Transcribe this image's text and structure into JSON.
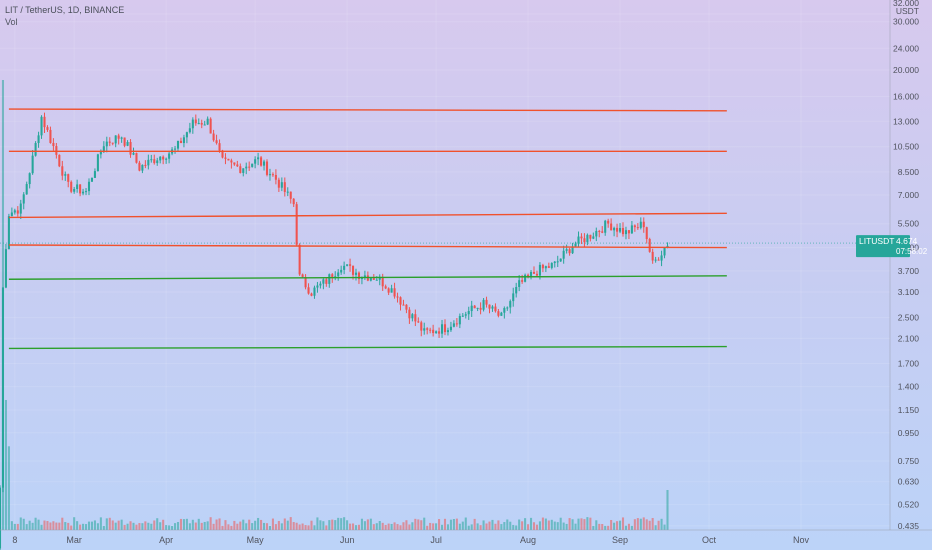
{
  "header": {
    "symbol_line": "LIT / TetherUS, 1D, BINANCE",
    "volume_label": "Vol"
  },
  "price_tag": {
    "symbol": "LITUSDT",
    "price": "4.674",
    "countdown": "07:58:02",
    "color": "#26a69a"
  },
  "colors": {
    "up": "#26a69a",
    "down": "#ef5350",
    "resistance": "#f0512d",
    "support": "#2ca02c",
    "axis_text": "#50535e"
  },
  "chart_data": {
    "type": "candlestick",
    "title": "LIT / TetherUS, 1D, BINANCE",
    "y_axis": {
      "scale": "log",
      "unit": "USDT",
      "tick_labels": [
        "32.000",
        "30.000",
        "24.000",
        "20.000",
        "16.000",
        "13.000",
        "10.500",
        "8.500",
        "7.000",
        "5.500",
        "4.500",
        "3.700",
        "3.100",
        "2.500",
        "2.100",
        "1.700",
        "1.400",
        "1.150",
        "0.950",
        "0.750",
        "0.630",
        "0.520",
        "0.435"
      ],
      "ticks": [
        32.0,
        30.0,
        24.0,
        20.0,
        16.0,
        13.0,
        10.5,
        8.5,
        7.0,
        5.5,
        4.5,
        3.7,
        3.1,
        2.5,
        2.1,
        1.7,
        1.4,
        1.15,
        0.95,
        0.75,
        0.63,
        0.52,
        0.435
      ],
      "range": [
        0.42,
        36.0
      ]
    },
    "x_axis": {
      "labels": [
        "8",
        "Mar",
        "Apr",
        "May",
        "Jun",
        "Jul",
        "Aug",
        "Sep",
        "Oct",
        "Nov"
      ],
      "label_days": [
        0,
        20,
        51,
        81,
        112,
        142,
        173,
        204,
        234,
        265
      ],
      "range_days": [
        -5,
        295
      ]
    },
    "levels": [
      {
        "kind": "resistance",
        "price_start": 14.4,
        "price_end": 14.2,
        "day_start": -2,
        "day_end": 240
      },
      {
        "kind": "resistance",
        "price_start": 10.1,
        "price_end": 10.1,
        "day_start": -2,
        "day_end": 240
      },
      {
        "kind": "resistance",
        "price_start": 5.8,
        "price_end": 6.0,
        "day_start": -2,
        "day_end": 240
      },
      {
        "kind": "resistance",
        "price_start": 4.6,
        "price_end": 4.5,
        "day_start": -2,
        "day_end": 240
      },
      {
        "kind": "support",
        "price_start": 3.45,
        "price_end": 3.55,
        "day_start": -2,
        "day_end": 240
      },
      {
        "kind": "support",
        "price_start": 1.93,
        "price_end": 1.96,
        "day_start": -2,
        "day_end": 240
      }
    ],
    "price_path": [
      {
        "day": -5,
        "close": 0.6
      },
      {
        "day": -4,
        "close": 3.2
      },
      {
        "day": -3,
        "close": 4.6
      },
      {
        "day": -2,
        "close": 6.0
      },
      {
        "day": 2,
        "close": 6.3
      },
      {
        "day": 6,
        "close": 9.5
      },
      {
        "day": 9,
        "close": 13.5
      },
      {
        "day": 13,
        "close": 10.5
      },
      {
        "day": 18,
        "close": 7.5
      },
      {
        "day": 24,
        "close": 7.2
      },
      {
        "day": 30,
        "close": 10.8
      },
      {
        "day": 36,
        "close": 11.5
      },
      {
        "day": 42,
        "close": 8.8
      },
      {
        "day": 48,
        "close": 9.6
      },
      {
        "day": 54,
        "close": 10.2
      },
      {
        "day": 60,
        "close": 12.8
      },
      {
        "day": 65,
        "close": 13.0
      },
      {
        "day": 70,
        "close": 9.2
      },
      {
        "day": 76,
        "close": 8.8
      },
      {
        "day": 82,
        "close": 9.4
      },
      {
        "day": 88,
        "close": 8.0
      },
      {
        "day": 94,
        "close": 6.5
      },
      {
        "day": 96,
        "close": 3.5
      },
      {
        "day": 100,
        "close": 3.1
      },
      {
        "day": 105,
        "close": 3.4
      },
      {
        "day": 110,
        "close": 3.9
      },
      {
        "day": 116,
        "close": 3.6
      },
      {
        "day": 122,
        "close": 3.5
      },
      {
        "day": 128,
        "close": 3.1
      },
      {
        "day": 133,
        "close": 2.6
      },
      {
        "day": 138,
        "close": 2.2
      },
      {
        "day": 145,
        "close": 2.3
      },
      {
        "day": 152,
        "close": 2.6
      },
      {
        "day": 158,
        "close": 2.8
      },
      {
        "day": 164,
        "close": 2.5
      },
      {
        "day": 170,
        "close": 3.3
      },
      {
        "day": 176,
        "close": 3.7
      },
      {
        "day": 182,
        "close": 3.9
      },
      {
        "day": 188,
        "close": 4.6
      },
      {
        "day": 194,
        "close": 5.0
      },
      {
        "day": 200,
        "close": 5.5
      },
      {
        "day": 206,
        "close": 5.1
      },
      {
        "day": 212,
        "close": 5.5
      },
      {
        "day": 215,
        "close": 3.9
      },
      {
        "day": 220,
        "close": 4.67
      }
    ]
  }
}
